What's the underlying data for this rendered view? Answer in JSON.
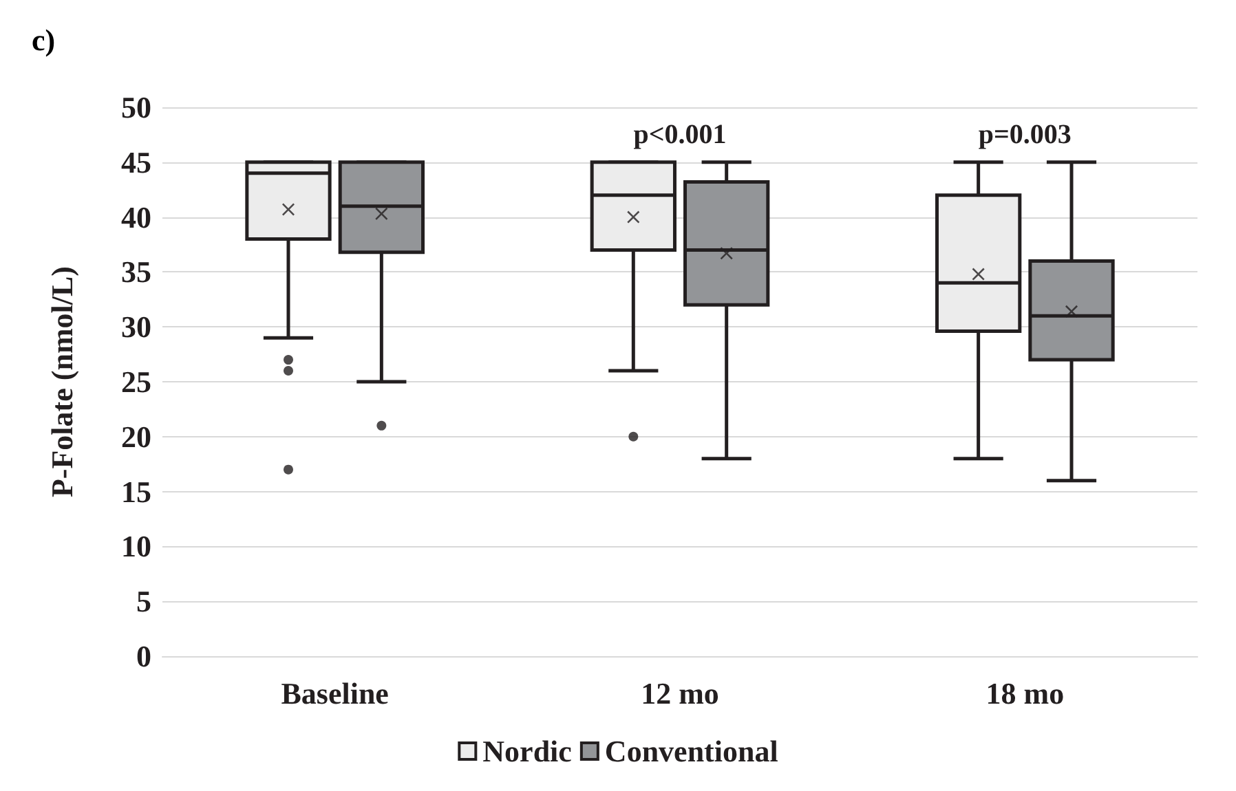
{
  "chart_data": {
    "type": "box",
    "title": "c)",
    "ylabel": "P-Folate (nmol/L)",
    "categories": [
      "Baseline",
      "12 mo",
      "18 mo"
    ],
    "ylim": [
      0,
      50
    ],
    "yticks": [
      0,
      5,
      10,
      15,
      20,
      25,
      30,
      35,
      40,
      45,
      50
    ],
    "grid": "y",
    "legend": "bottom",
    "annotations": [
      "p<0.001",
      "p=0.003"
    ],
    "series": [
      {
        "name": "Nordic",
        "color": "#ececec",
        "boxes": [
          {
            "low": 29,
            "q1": 38,
            "median": 44,
            "q3": 45,
            "high": 45,
            "mean": 40.7,
            "outliers": [
              27,
              26,
              17
            ]
          },
          {
            "low": 26,
            "q1": 37,
            "median": 42,
            "q3": 45,
            "high": 45,
            "mean": 40,
            "outliers": [
              20
            ]
          },
          {
            "low": 18,
            "q1": 29.6,
            "median": 34,
            "q3": 42,
            "high": 45,
            "mean": 34.8
          }
        ]
      },
      {
        "name": "Conventional",
        "color": "#939598",
        "boxes": [
          {
            "low": 25,
            "q1": 36.8,
            "median": 41,
            "q3": 45,
            "high": 45,
            "mean": 40.3,
            "outliers": [
              21
            ]
          },
          {
            "low": 18,
            "q1": 32,
            "median": 37,
            "q3": 43.2,
            "high": 45,
            "mean": 36.7
          },
          {
            "low": 16,
            "q1": 27,
            "median": 31,
            "q3": 36,
            "high": 45,
            "mean": 31.4
          }
        ]
      }
    ]
  }
}
